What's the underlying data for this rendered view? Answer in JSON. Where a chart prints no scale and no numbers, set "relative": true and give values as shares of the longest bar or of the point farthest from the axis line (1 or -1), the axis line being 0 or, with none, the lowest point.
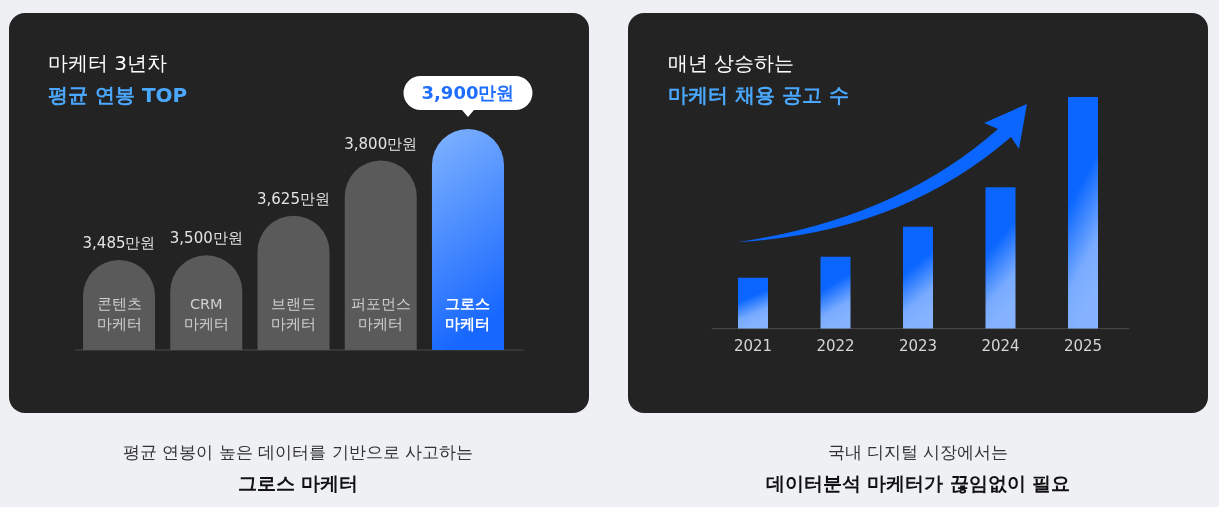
{
  "chart_data": [
    {
      "type": "bar",
      "title": "마케터 3년차",
      "subtitle": "평균 연봉 TOP",
      "categories": [
        "콘텐츠 마케터",
        "CRM 마케터",
        "브랜드 마케터",
        "퍼포먼스 마케터",
        "그로스 마케터"
      ],
      "values": [
        3485,
        3500,
        3625,
        3800,
        3900
      ],
      "colors": [
        "#5a5a5a",
        "#5a5a5a",
        "#5a5a5a",
        "#5a5a5a",
        "#3d8bff"
      ],
      "ylim": [
        3200,
        3900
      ],
      "value_labels": [
        "3,485만원",
        "3,500만원",
        "3,625만원",
        "3,800만원",
        null
      ],
      "annotations": [
        {
          "text": "3,900만원",
          "x": "그로스 마케터",
          "y": 3900
        },
        "평균 연봉이 높은 데이터를 기반으로 사고하는",
        "그로스 마케터"
      ]
    },
    {
      "type": "bar",
      "relative": true,
      "title": "매년 상승하는",
      "subtitle": "마케터 채용 공고 수",
      "categories": [
        "2021",
        "2022",
        "2023",
        "2024",
        "2025"
      ],
      "values": [
        0.22,
        0.31,
        0.44,
        0.61,
        1
      ],
      "color": "#0a66ff",
      "annotations": [
        "국내 디지털 시장에서는",
        "데이터분석 마케터가 끊임없이 필요"
      ]
    }
  ]
}
